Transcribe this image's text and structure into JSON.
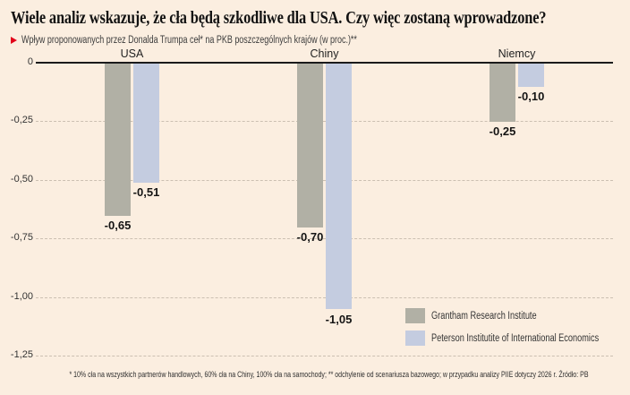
{
  "header": {
    "title": "Wiele analiz wskazuje, że cła będą szkodliwe dla USA. Czy więc zostaną wprowadzone?",
    "subtitle": "Wpływ proponowanych przez Donalda Trumpa ceł* na PKB poszczególnych krajów (w proc.)**"
  },
  "chart_data": {
    "type": "bar",
    "categories": [
      "USA",
      "Chiny",
      "Niemcy"
    ],
    "series": [
      {
        "name": "Grantham Research Institute",
        "color": "#b1b0a5",
        "values": [
          -0.65,
          -0.7,
          -0.25
        ],
        "value_labels": [
          "-0,65",
          "-0,70",
          "-0,25"
        ]
      },
      {
        "name": "Peterson Institutite of International Economics",
        "color": "#c4cce0",
        "values": [
          -0.51,
          -1.05,
          -0.1
        ],
        "value_labels": [
          "-0,51",
          "-1,05",
          "-0,10"
        ]
      }
    ],
    "y_ticks": [
      0,
      -0.25,
      -0.5,
      -0.75,
      -1.0,
      -1.25
    ],
    "y_tick_labels": [
      "0",
      "-0,25",
      "-0,50",
      "-0,75",
      "-1,00",
      "-1,25"
    ],
    "ylim": [
      -1.25,
      0
    ],
    "grid": true,
    "legend_position": "bottom-right"
  },
  "colors": {
    "background": "#fbeee0",
    "accent_red": "#e2001a",
    "zero_line": "#1b1b1b",
    "grid_line": "#cbbfb1"
  },
  "footnote": "* 10% cła na wszystkich partnerów handlowych, 60% cła na Chiny, 100% cła na samochody; ** odchylenie od scenariusza bazowego; w przypadku analizy PIIE dotyczy 2026 r. Źródło: PB"
}
